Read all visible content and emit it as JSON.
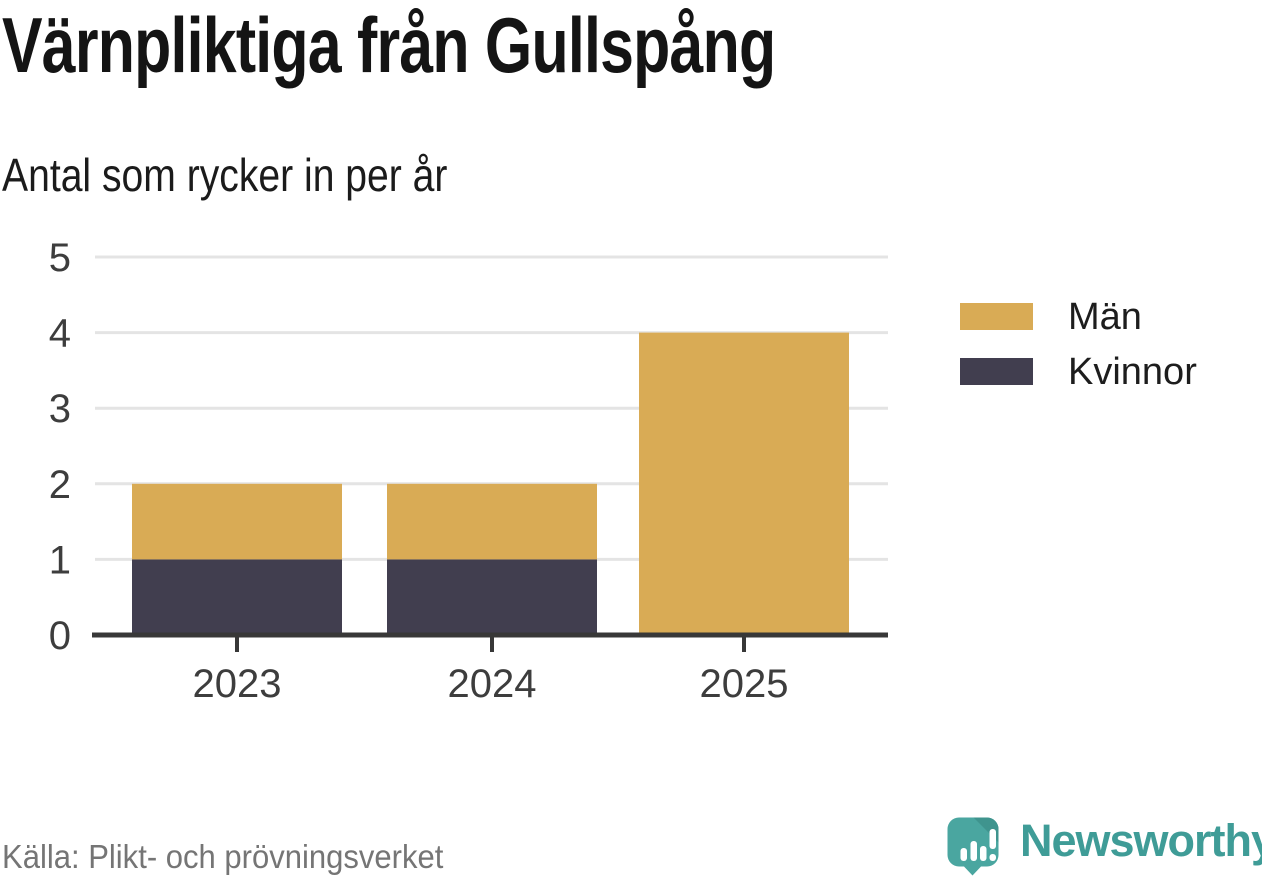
{
  "chart_data": {
    "type": "bar",
    "stacked": true,
    "title": "Värnpliktiga från Gullspång",
    "subtitle": "Antal som rycker in per år",
    "categories": [
      "2023",
      "2024",
      "2025"
    ],
    "series": [
      {
        "name": "Kvinnor",
        "color": "#413e4f",
        "values": [
          1,
          1,
          0
        ]
      },
      {
        "name": "Män",
        "color": "#d9ab55",
        "values": [
          1,
          1,
          4
        ]
      }
    ],
    "xlabel": "",
    "ylabel": "",
    "ylim": [
      0,
      5
    ],
    "yticks": [
      0,
      1,
      2,
      3,
      4,
      5
    ],
    "grid": true,
    "gridline_color": "#e4e4e4",
    "axis_color": "#383838",
    "tick_label_color": "#3d3d3d",
    "legend_position": "right"
  },
  "legend": {
    "items": [
      {
        "label": "Män",
        "color": "#d9ab55"
      },
      {
        "label": "Kvinnor",
        "color": "#413e4f"
      }
    ]
  },
  "footer": {
    "source": "Källa: Plikt- och prövningsverket",
    "brand": "Newsworthy",
    "brand_color": "#3f9c97",
    "logo_icon_color": "#4aa6a0"
  }
}
